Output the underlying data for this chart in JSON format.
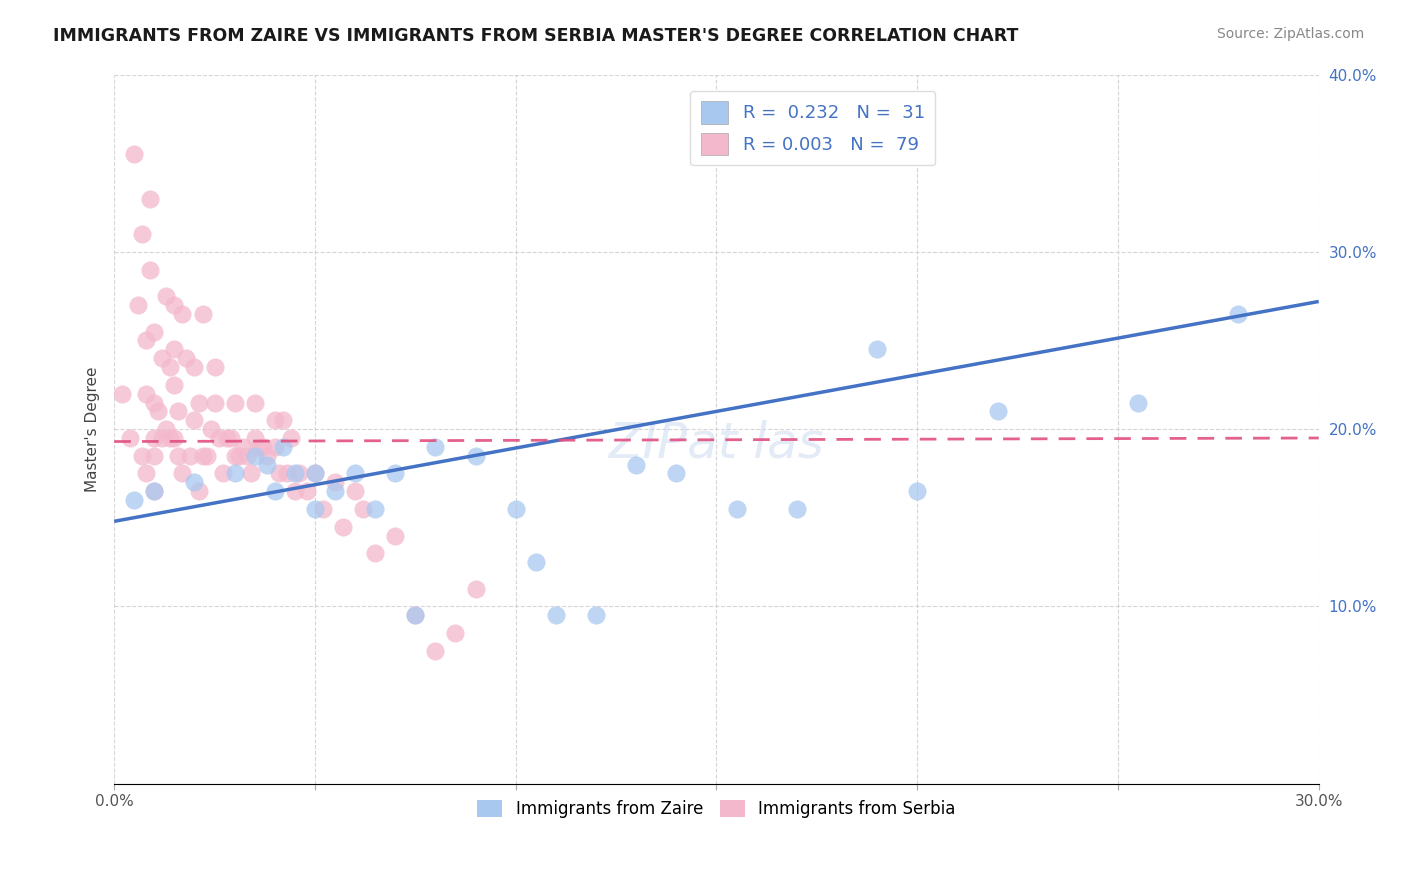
{
  "title": "IMMIGRANTS FROM ZAIRE VS IMMIGRANTS FROM SERBIA MASTER'S DEGREE CORRELATION CHART",
  "source": "Source: ZipAtlas.com",
  "ylabel": "Master's Degree",
  "xlim": [
    0.0,
    0.3
  ],
  "ylim": [
    0.0,
    0.4
  ],
  "xtick_vals": [
    0.0,
    0.05,
    0.1,
    0.15,
    0.2,
    0.25,
    0.3
  ],
  "ytick_vals": [
    0.0,
    0.1,
    0.2,
    0.3,
    0.4
  ],
  "xtick_labels": [
    "0.0%",
    "",
    "",
    "",
    "",
    "",
    "30.0%"
  ],
  "ytick_labels": [
    "",
    "10.0%",
    "20.0%",
    "30.0%",
    "40.0%"
  ],
  "grid_color": "#cccccc",
  "background_color": "#ffffff",
  "zaire_color": "#a8c8f0",
  "serbia_color": "#f4b8cc",
  "zaire_R": 0.232,
  "zaire_N": 31,
  "serbia_R": 0.003,
  "serbia_N": 79,
  "zaire_line_color": "#4472c4",
  "serbia_line_color": "#e05080",
  "legend_label_zaire": "Immigrants from Zaire",
  "legend_label_serbia": "Immigrants from Serbia",
  "zaire_line_x0": 0.0,
  "zaire_line_y0": 0.148,
  "zaire_line_x1": 0.3,
  "zaire_line_y1": 0.272,
  "serbia_line_x0": 0.0,
  "serbia_line_y0": 0.193,
  "serbia_line_x1": 0.3,
  "serbia_line_y1": 0.195,
  "zaire_scatter_x": [
    0.005,
    0.01,
    0.02,
    0.03,
    0.035,
    0.038,
    0.04,
    0.042,
    0.045,
    0.05,
    0.05,
    0.055,
    0.06,
    0.065,
    0.07,
    0.075,
    0.08,
    0.09,
    0.1,
    0.105,
    0.11,
    0.12,
    0.13,
    0.14,
    0.155,
    0.17,
    0.19,
    0.2,
    0.22,
    0.255,
    0.28
  ],
  "zaire_scatter_y": [
    0.16,
    0.165,
    0.17,
    0.175,
    0.185,
    0.18,
    0.165,
    0.19,
    0.175,
    0.175,
    0.155,
    0.165,
    0.175,
    0.155,
    0.175,
    0.095,
    0.19,
    0.185,
    0.155,
    0.125,
    0.095,
    0.095,
    0.18,
    0.175,
    0.155,
    0.155,
    0.245,
    0.165,
    0.21,
    0.215,
    0.265
  ],
  "serbia_scatter_x": [
    0.002,
    0.004,
    0.005,
    0.006,
    0.007,
    0.007,
    0.008,
    0.008,
    0.008,
    0.009,
    0.009,
    0.01,
    0.01,
    0.01,
    0.01,
    0.01,
    0.011,
    0.012,
    0.012,
    0.013,
    0.013,
    0.014,
    0.014,
    0.015,
    0.015,
    0.015,
    0.015,
    0.016,
    0.016,
    0.017,
    0.017,
    0.018,
    0.019,
    0.02,
    0.02,
    0.021,
    0.021,
    0.022,
    0.022,
    0.023,
    0.024,
    0.025,
    0.025,
    0.026,
    0.027,
    0.028,
    0.029,
    0.03,
    0.03,
    0.031,
    0.032,
    0.033,
    0.034,
    0.035,
    0.035,
    0.036,
    0.037,
    0.038,
    0.04,
    0.04,
    0.041,
    0.042,
    0.043,
    0.044,
    0.045,
    0.046,
    0.048,
    0.05,
    0.052,
    0.055,
    0.057,
    0.06,
    0.062,
    0.065,
    0.07,
    0.075,
    0.08,
    0.085,
    0.09
  ],
  "serbia_scatter_y": [
    0.22,
    0.195,
    0.355,
    0.27,
    0.185,
    0.31,
    0.22,
    0.25,
    0.175,
    0.29,
    0.33,
    0.215,
    0.255,
    0.195,
    0.185,
    0.165,
    0.21,
    0.24,
    0.195,
    0.2,
    0.275,
    0.235,
    0.195,
    0.225,
    0.27,
    0.245,
    0.195,
    0.21,
    0.185,
    0.175,
    0.265,
    0.24,
    0.185,
    0.205,
    0.235,
    0.165,
    0.215,
    0.185,
    0.265,
    0.185,
    0.2,
    0.215,
    0.235,
    0.195,
    0.175,
    0.195,
    0.195,
    0.185,
    0.215,
    0.185,
    0.19,
    0.185,
    0.175,
    0.215,
    0.195,
    0.19,
    0.19,
    0.185,
    0.19,
    0.205,
    0.175,
    0.205,
    0.175,
    0.195,
    0.165,
    0.175,
    0.165,
    0.175,
    0.155,
    0.17,
    0.145,
    0.165,
    0.155,
    0.13,
    0.14,
    0.095,
    0.075,
    0.085,
    0.11
  ]
}
